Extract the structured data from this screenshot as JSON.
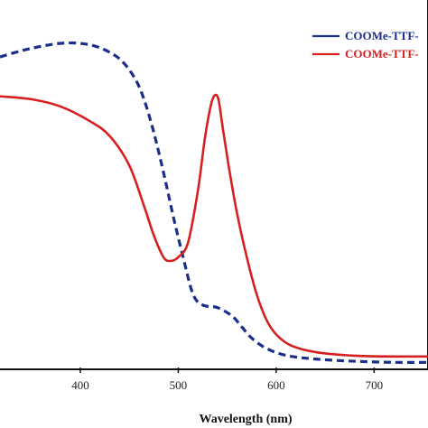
{
  "chart_data": {
    "type": "line",
    "title": "",
    "xlabel": "Wavelength (nm)",
    "ylabel": "",
    "xlim": [
      318,
      755
    ],
    "ylim": [
      0,
      1.0
    ],
    "xticks": [
      400,
      500,
      600,
      700
    ],
    "grid": false,
    "legend_position": "top-right",
    "series": [
      {
        "name": "COOMe-TTF-",
        "color": "#1a2f8a",
        "style": "dashed",
        "x": [
          318,
          340,
          360,
          380,
          400,
          420,
          440,
          455,
          465,
          475,
          485,
          495,
          505,
          515,
          525,
          540,
          555,
          565,
          575,
          590,
          610,
          640,
          680,
          720,
          755
        ],
        "y": [
          0.845,
          0.862,
          0.874,
          0.882,
          0.882,
          0.87,
          0.84,
          0.79,
          0.73,
          0.64,
          0.53,
          0.41,
          0.3,
          0.2,
          0.17,
          0.163,
          0.14,
          0.11,
          0.08,
          0.052,
          0.033,
          0.023,
          0.017,
          0.014,
          0.014
        ]
      },
      {
        "name": "COOMe-TTF-",
        "color": "#d62020",
        "style": "solid",
        "x": [
          318,
          350,
          380,
          410,
          430,
          450,
          465,
          475,
          485,
          492,
          500,
          510,
          520,
          527,
          533,
          537,
          541,
          545,
          552,
          560,
          570,
          580,
          590,
          600,
          615,
          640,
          680,
          720,
          755
        ],
        "y": [
          0.738,
          0.73,
          0.71,
          0.67,
          0.63,
          0.55,
          0.44,
          0.36,
          0.3,
          0.29,
          0.3,
          0.34,
          0.48,
          0.62,
          0.71,
          0.74,
          0.73,
          0.66,
          0.54,
          0.42,
          0.3,
          0.2,
          0.13,
          0.09,
          0.06,
          0.042,
          0.032,
          0.03,
          0.03
        ]
      }
    ]
  }
}
